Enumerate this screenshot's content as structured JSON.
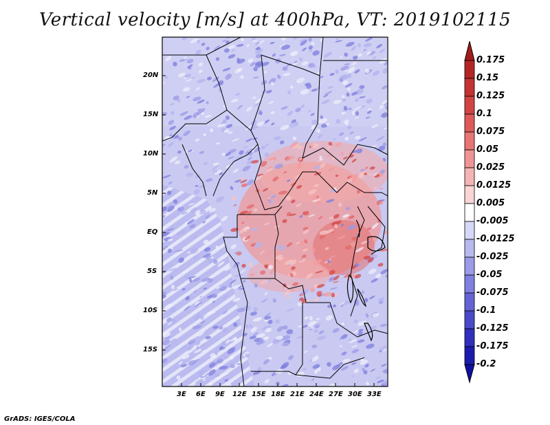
{
  "title": "Vertical velocity [m/s] at 400hPa, VT: 2019102115",
  "footer": "GrADS: IGES/COLA",
  "lat_labels": [
    "20N",
    "15N",
    "10N",
    "5N",
    "EQ",
    "5S",
    "10S",
    "15S"
  ],
  "lon_labels": [
    "3E",
    "6E",
    "9E",
    "12E",
    "15E",
    "18E",
    "21E",
    "24E",
    "27E",
    "30E",
    "33E"
  ],
  "colorbar": {
    "labels": [
      "0.175",
      "0.15",
      "0.125",
      "0.1",
      "0.075",
      "0.05",
      "0.025",
      "0.0125",
      "0.005",
      "-0.005",
      "-0.0125",
      "-0.025",
      "-0.05",
      "-0.075",
      "-0.1",
      "-0.125",
      "-0.175",
      "-0.2"
    ],
    "colors": [
      "#a11c1c",
      "#b42626",
      "#c43333",
      "#d24444",
      "#de5a5a",
      "#e87575",
      "#ef9494",
      "#f5b5b5",
      "#fad5d5",
      "#ffffff",
      "#d7d7f7",
      "#b9b9f0",
      "#9b9be8",
      "#8080e0",
      "#6464d6",
      "#4a4acb",
      "#3030bd",
      "#1c1cac",
      "#1010a0"
    ]
  }
}
